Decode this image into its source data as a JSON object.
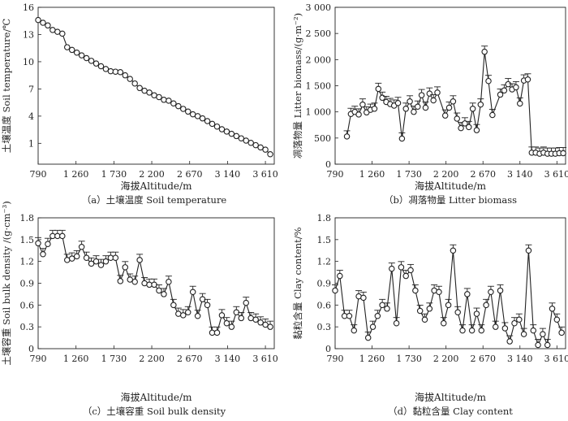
{
  "chart_data": [
    {
      "id": "a",
      "type": "line",
      "caption": "（a）土壤温度 Soil temperature",
      "xlabel": "海拔Altitude/m",
      "ylabel": "土壤温度 Soil temperature/℃",
      "xticks": [
        790,
        1260,
        1730,
        2200,
        2670,
        3140,
        3610
      ],
      "xtick_labels": [
        "790",
        "1 260",
        "1 730",
        "2 200",
        "2 670",
        "3 140",
        "3 610"
      ],
      "yticks": [
        1,
        4,
        7,
        10,
        13,
        16
      ],
      "ytick_labels": [
        "1",
        "4",
        "7",
        "10",
        "13",
        "16"
      ],
      "xlim": [
        790,
        3720
      ],
      "ylim": [
        -1.3,
        16
      ],
      "error_bars": false,
      "x": [
        790,
        850,
        910,
        970,
        1030,
        1090,
        1150,
        1210,
        1270,
        1330,
        1390,
        1450,
        1510,
        1570,
        1630,
        1690,
        1750,
        1810,
        1870,
        1930,
        1990,
        2050,
        2110,
        2170,
        2230,
        2290,
        2350,
        2410,
        2470,
        2530,
        2590,
        2650,
        2710,
        2770,
        2830,
        2890,
        2950,
        3010,
        3070,
        3130,
        3190,
        3250,
        3310,
        3370,
        3430,
        3490,
        3550,
        3610,
        3670
      ],
      "y": [
        14.6,
        14.3,
        14.0,
        13.5,
        13.3,
        13.1,
        11.6,
        11.3,
        11.0,
        10.7,
        10.4,
        10.1,
        9.8,
        9.5,
        9.2,
        8.95,
        8.9,
        8.85,
        8.5,
        8.1,
        7.6,
        7.1,
        6.8,
        6.6,
        6.3,
        6.1,
        5.8,
        5.7,
        5.4,
        5.1,
        4.8,
        4.5,
        4.2,
        4.0,
        3.75,
        3.45,
        3.15,
        2.85,
        2.55,
        2.3,
        2.05,
        1.8,
        1.55,
        1.3,
        1.05,
        0.8,
        0.55,
        0.3,
        -0.2
      ]
    },
    {
      "id": "b",
      "type": "line",
      "caption": "（b）凋落物量 Litter biomass",
      "xlabel": "海拔Altitude/m",
      "ylabel": "凋落物量 Litter biomass/(g·m⁻²)",
      "xticks": [
        790,
        1260,
        1730,
        2200,
        2670,
        3140,
        3610
      ],
      "xtick_labels": [
        "790",
        "1 260",
        "1 730",
        "2 200",
        "2 670",
        "3 140",
        "3 610"
      ],
      "yticks": [
        0,
        500,
        1000,
        1500,
        2000,
        2500,
        3000
      ],
      "ytick_labels": [
        "0",
        "500",
        "1 000",
        "1 500",
        "2 000",
        "2 500",
        "3 000"
      ],
      "xlim": [
        790,
        3720
      ],
      "ylim": [
        0,
        3000
      ],
      "error_bars": true,
      "x": [
        940,
        990,
        1040,
        1090,
        1140,
        1190,
        1240,
        1290,
        1340,
        1390,
        1440,
        1490,
        1540,
        1590,
        1640,
        1690,
        1740,
        1790,
        1840,
        1890,
        1940,
        1990,
        2040,
        2090,
        2190,
        2240,
        2290,
        2340,
        2390,
        2440,
        2490,
        2540,
        2590,
        2640,
        2690,
        2740,
        2790,
        2890,
        2940,
        2990,
        3040,
        3090,
        3140,
        3190,
        3240,
        3290,
        3340,
        3390,
        3440,
        3490,
        3540,
        3590,
        3640,
        3690
      ],
      "y": [
        530,
        960,
        1000,
        950,
        1140,
        990,
        1040,
        1060,
        1440,
        1270,
        1190,
        1150,
        1120,
        1170,
        490,
        1060,
        1200,
        1000,
        1100,
        1320,
        1080,
        1350,
        1220,
        1370,
        930,
        1080,
        1200,
        870,
        690,
        780,
        710,
        1060,
        650,
        1140,
        2150,
        1590,
        940,
        1330,
        1410,
        1530,
        1430,
        1470,
        1160,
        1600,
        1620,
        220,
        220,
        200,
        220,
        200,
        200,
        200,
        210,
        210
      ]
    },
    {
      "id": "c",
      "type": "line",
      "caption": "（c）土壤容重 Soil bulk density",
      "xlabel": "海拔Altitude/m",
      "ylabel": "土壤容重 Soil bulk density /(g·cm⁻³)",
      "xticks": [
        790,
        1260,
        1730,
        2200,
        2670,
        3140,
        3610
      ],
      "xtick_labels": [
        "790",
        "1 260",
        "1 730",
        "2 200",
        "2 670",
        "3 140",
        "3 610"
      ],
      "yticks": [
        0,
        0.3,
        0.6,
        0.9,
        1.2,
        1.5,
        1.8
      ],
      "ytick_labels": [
        "0",
        "0.3",
        "0.6",
        "0.9",
        "1.2",
        "1.5",
        "1.8"
      ],
      "xlim": [
        790,
        3720
      ],
      "ylim": [
        0,
        1.8
      ],
      "error_bars": true,
      "x": [
        790,
        850,
        910,
        970,
        1030,
        1090,
        1150,
        1210,
        1270,
        1330,
        1390,
        1450,
        1510,
        1570,
        1630,
        1690,
        1750,
        1810,
        1870,
        1930,
        1990,
        2050,
        2110,
        2170,
        2230,
        2290,
        2350,
        2410,
        2470,
        2530,
        2590,
        2650,
        2710,
        2770,
        2830,
        2890,
        2950,
        3010,
        3070,
        3130,
        3190,
        3250,
        3310,
        3370,
        3430,
        3490,
        3550,
        3610,
        3670
      ],
      "y": [
        1.45,
        1.3,
        1.44,
        1.55,
        1.55,
        1.55,
        1.22,
        1.24,
        1.27,
        1.4,
        1.25,
        1.17,
        1.2,
        1.15,
        1.2,
        1.25,
        1.25,
        0.93,
        1.12,
        0.95,
        0.92,
        1.22,
        0.9,
        0.88,
        0.88,
        0.8,
        0.75,
        0.92,
        0.6,
        0.48,
        0.46,
        0.5,
        0.78,
        0.45,
        0.68,
        0.6,
        0.22,
        0.22,
        0.46,
        0.35,
        0.3,
        0.5,
        0.42,
        0.63,
        0.42,
        0.4,
        0.36,
        0.33,
        0.3
      ]
    },
    {
      "id": "d",
      "type": "line",
      "caption": "（d）黏粒含量 Clay content",
      "xlabel": "海拔Altitude/m",
      "ylabel": "黏粒含量 Clay content/%",
      "xticks": [
        790,
        1260,
        1730,
        2200,
        2670,
        3140,
        3610
      ],
      "xtick_labels": [
        "790",
        "1 260",
        "1 730",
        "2 200",
        "2 670",
        "3 140",
        "3 610"
      ],
      "yticks": [
        0,
        0.3,
        0.6,
        0.9,
        1.2,
        1.5,
        1.8
      ],
      "ytick_labels": [
        "0",
        "0.3",
        "0.6",
        "0.9",
        "1.2",
        "1.5",
        "1.8"
      ],
      "xlim": [
        790,
        3720
      ],
      "ylim": [
        0,
        1.8
      ],
      "error_bars": true,
      "x": [
        790,
        850,
        910,
        970,
        1030,
        1090,
        1150,
        1210,
        1270,
        1330,
        1390,
        1450,
        1510,
        1570,
        1630,
        1690,
        1750,
        1810,
        1870,
        1930,
        1990,
        2050,
        2110,
        2170,
        2230,
        2290,
        2350,
        2410,
        2470,
        2530,
        2590,
        2650,
        2710,
        2770,
        2830,
        2890,
        2950,
        3010,
        3070,
        3130,
        3190,
        3250,
        3310,
        3370,
        3430,
        3490,
        3550,
        3610,
        3670
      ],
      "y": [
        0.8,
        1.0,
        0.45,
        0.45,
        0.25,
        0.72,
        0.7,
        0.15,
        0.3,
        0.45,
        0.6,
        0.55,
        1.1,
        0.35,
        1.12,
        1.0,
        1.08,
        0.8,
        0.52,
        0.4,
        0.55,
        0.8,
        0.78,
        0.35,
        0.6,
        1.35,
        0.5,
        0.25,
        0.75,
        0.25,
        0.48,
        0.25,
        0.6,
        0.78,
        0.3,
        0.8,
        0.28,
        0.1,
        0.35,
        0.4,
        0.2,
        1.35,
        0.25,
        0.05,
        0.2,
        0.05,
        0.55,
        0.4,
        0.22
      ]
    }
  ]
}
